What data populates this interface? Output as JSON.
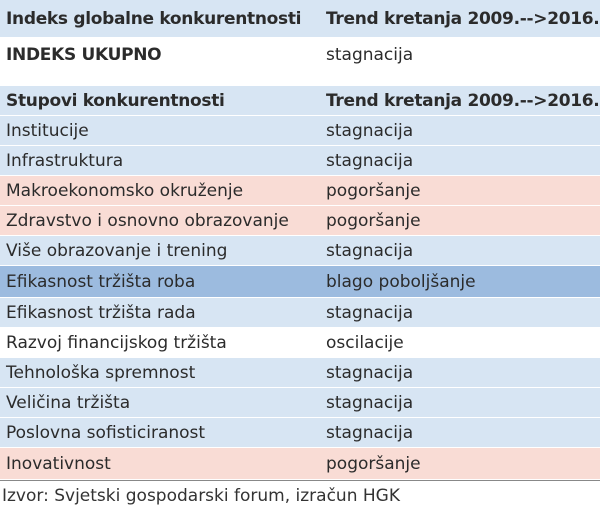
{
  "table": {
    "header": [
      "Indeks globalne konkurentnosti",
      "Trend kretanja 2009.-->2016."
    ],
    "total": [
      "INDEKS UKUPNO",
      "stagnacija"
    ],
    "subheader": [
      "Stupovi konkurentnosti",
      "Trend kretanja 2009.-->2016."
    ],
    "rows": [
      [
        "Institucije",
        "stagnacija"
      ],
      [
        "Infrastruktura",
        "stagnacija"
      ],
      [
        "Makroekonomsko okruženje",
        "pogoršanje"
      ],
      [
        "Zdravstvo i osnovno obrazovanje",
        "pogoršanje"
      ],
      [
        "Više obrazovanje i trening",
        "stagnacija"
      ],
      [
        "Efikasnost tržišta roba",
        "blago poboljšanje"
      ],
      [
        "Efikasnost tržišta rada",
        "stagnacija"
      ],
      [
        "Razvoj financijskog tržišta",
        "oscilacije"
      ],
      [
        "Tehnološka spremnost",
        "stagnacija"
      ],
      [
        "Veličina tržišta",
        "stagnacija"
      ],
      [
        "Poslovna sofisticiranost",
        "stagnacija"
      ],
      [
        "Inovativnost",
        "pogoršanje"
      ]
    ]
  },
  "source": "Izvor: Svjetski gospodarski forum, izračun HGK"
}
